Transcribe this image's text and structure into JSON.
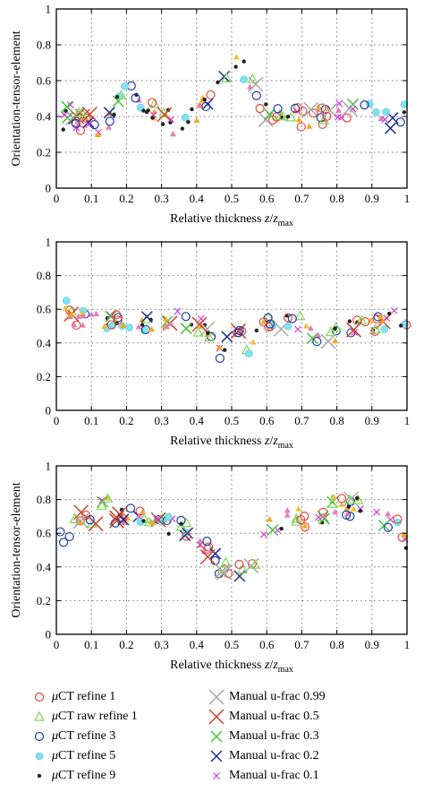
{
  "chart_data": [
    {
      "type": "scatter",
      "xlabel_main": "Relative thickness ",
      "xlabel_var": "z",
      "xlabel_slash": "/",
      "xlabel_var2": "z",
      "xlabel_sub": "max",
      "ylabel": "Orientation-tensor-element",
      "xlim": [
        0,
        1
      ],
      "ylim": [
        0,
        1
      ],
      "x_ticks": [
        "0",
        "0.1",
        "0.2",
        "0.3",
        "0.4",
        "0.5",
        "0.6",
        "0.7",
        "0.8",
        "0.9",
        "1"
      ],
      "y_ticks": [
        "0",
        "0.2",
        "0.4",
        "0.6",
        "0.8",
        "1"
      ],
      "grid": true,
      "anchors": {
        "x": [
          0,
          0.03,
          0.07,
          0.1,
          0.13,
          0.16,
          0.19,
          0.22,
          0.25,
          0.28,
          0.31,
          0.34,
          0.37,
          0.4,
          0.43,
          0.46,
          0.49,
          0.52,
          0.54,
          0.56,
          0.59,
          0.62,
          0.65,
          0.68,
          0.72,
          0.76,
          0.8,
          0.84,
          0.88,
          0.92,
          0.95,
          0.98,
          1.0
        ],
        "y": [
          0.25,
          0.43,
          0.38,
          0.35,
          0.29,
          0.45,
          0.56,
          0.53,
          0.45,
          0.41,
          0.4,
          0.33,
          0.36,
          0.42,
          0.48,
          0.56,
          0.64,
          0.74,
          0.62,
          0.57,
          0.45,
          0.38,
          0.42,
          0.4,
          0.38,
          0.4,
          0.45,
          0.42,
          0.44,
          0.4,
          0.36,
          0.42,
          0.5
        ]
      },
      "spread": 0.06,
      "seed": 11
    },
    {
      "type": "scatter",
      "xlabel_main": "Relative thickness ",
      "xlabel_var": "z",
      "xlabel_slash": "/",
      "xlabel_var2": "z",
      "xlabel_sub": "max",
      "ylabel": "",
      "xlim": [
        0,
        1
      ],
      "ylim": [
        0,
        1
      ],
      "x_ticks": [
        "0",
        "0.1",
        "0.2",
        "0.3",
        "0.4",
        "0.5",
        "0.6",
        "0.7",
        "0.8",
        "0.9",
        "1"
      ],
      "y_ticks": [
        "0",
        "0.2",
        "0.4",
        "0.6",
        "0.8",
        "1"
      ],
      "grid": true,
      "anchors": {
        "x": [
          0,
          0.02,
          0.05,
          0.1,
          0.15,
          0.2,
          0.25,
          0.3,
          0.34,
          0.38,
          0.42,
          0.45,
          0.47,
          0.49,
          0.52,
          0.55,
          0.58,
          0.62,
          0.66,
          0.7,
          0.74,
          0.76,
          0.79,
          0.83,
          0.87,
          0.91,
          0.95,
          1.0
        ],
        "y": [
          0.6,
          0.63,
          0.55,
          0.54,
          0.53,
          0.53,
          0.52,
          0.53,
          0.57,
          0.52,
          0.5,
          0.46,
          0.33,
          0.42,
          0.45,
          0.38,
          0.5,
          0.53,
          0.52,
          0.53,
          0.46,
          0.37,
          0.45,
          0.5,
          0.52,
          0.5,
          0.54,
          0.55
        ]
      },
      "spread": 0.05,
      "seed": 23
    },
    {
      "type": "scatter",
      "xlabel_main": "Relative thickness ",
      "xlabel_var": "z",
      "xlabel_slash": "/",
      "xlabel_var2": "z",
      "xlabel_sub": "max",
      "ylabel": "Orientation-tensor-element",
      "xlim": [
        0,
        1
      ],
      "ylim": [
        0,
        1
      ],
      "x_ticks": [
        "0",
        "0.1",
        "0.2",
        "0.3",
        "0.4",
        "0.5",
        "0.6",
        "0.7",
        "0.8",
        "0.9",
        "1"
      ],
      "y_ticks": [
        "0",
        "0.2",
        "0.4",
        "0.6",
        "0.8",
        "1"
      ],
      "grid": true,
      "anchors": {
        "x": [
          0,
          0.03,
          0.07,
          0.1,
          0.14,
          0.18,
          0.22,
          0.26,
          0.3,
          0.34,
          0.38,
          0.42,
          0.45,
          0.48,
          0.5,
          0.53,
          0.56,
          0.58,
          0.6,
          0.65,
          0.7,
          0.75,
          0.79,
          0.83,
          0.86,
          0.9,
          0.94,
          0.97,
          1.0
        ],
        "y": [
          0.53,
          0.62,
          0.7,
          0.65,
          0.78,
          0.68,
          0.7,
          0.66,
          0.68,
          0.63,
          0.62,
          0.55,
          0.45,
          0.38,
          0.38,
          0.35,
          0.42,
          0.48,
          0.66,
          0.68,
          0.69,
          0.7,
          0.76,
          0.74,
          0.8,
          0.72,
          0.66,
          0.64,
          0.56
        ]
      },
      "spread": 0.06,
      "seed": 37
    }
  ],
  "legend": [
    {
      "greek": "μ",
      "label": "CT refine 1",
      "marker": "circle-open",
      "color": "#e8473c"
    },
    {
      "greek": "μ",
      "label": "CT raw refine 1",
      "marker": "triangle-open",
      "color": "#7ed957"
    },
    {
      "greek": "μ",
      "label": "CT refine 3",
      "marker": "circle-open",
      "color": "#1f3fa8"
    },
    {
      "greek": "μ",
      "label": "CT refine 5",
      "marker": "circle-filled",
      "color": "#7fe3f0"
    },
    {
      "greek": "μ",
      "label": "CT refine 9",
      "marker": "dot",
      "color": "#222222"
    },
    {
      "greek": "",
      "label": "Manual u-frac 0.99",
      "marker": "x-large",
      "color": "#a8a8a8"
    },
    {
      "greek": "",
      "label": "Manual u-frac 0.5",
      "marker": "x-large",
      "color": "#c9432e"
    },
    {
      "greek": "",
      "label": "Manual u-frac 0.3",
      "marker": "x-medium",
      "color": "#45c43b"
    },
    {
      "greek": "",
      "label": "Manual u-frac 0.2",
      "marker": "x-medium",
      "color": "#1c2f8f"
    },
    {
      "greek": "",
      "label": "Manual u-frac 0.1",
      "marker": "x-small",
      "color": "#d23cd8"
    }
  ],
  "extra_colors": {
    "orange_triangle": "#f5a623",
    "pink_triangle": "#e87ab8",
    "gold_triangle": "#e8c33a"
  }
}
